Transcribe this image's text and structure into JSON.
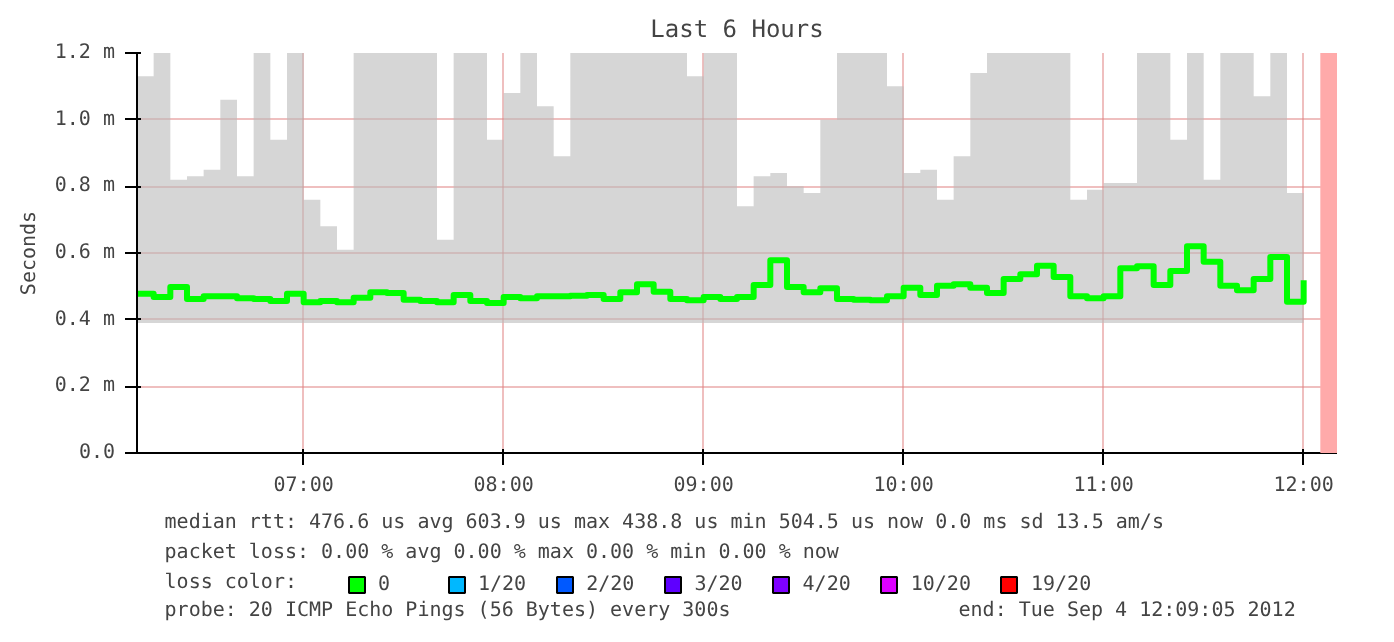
{
  "chart_data": {
    "type": "step",
    "title": "Last 6 Hours",
    "ylabel": "Seconds",
    "legend_title": "loss color:",
    "x": [
      6.1667,
      6.25,
      6.3333,
      6.4167,
      6.5,
      6.5833,
      6.6667,
      6.75,
      6.8333,
      6.9167,
      7.0,
      7.0833,
      7.1667,
      7.25,
      7.3333,
      7.4167,
      7.5,
      7.5833,
      7.6667,
      7.75,
      7.8333,
      7.9167,
      8.0,
      8.0833,
      8.1667,
      8.25,
      8.3333,
      8.4167,
      8.5,
      8.5833,
      8.6667,
      8.75,
      8.8333,
      8.9167,
      9.0,
      9.0833,
      9.1667,
      9.25,
      9.3333,
      9.4167,
      9.5,
      9.5833,
      9.6667,
      9.75,
      9.8333,
      9.9167,
      10.0,
      10.0833,
      10.1667,
      10.25,
      10.3333,
      10.4167,
      10.5,
      10.5833,
      10.6667,
      10.75,
      10.8333,
      10.9167,
      11.0,
      11.0833,
      11.1667,
      11.25,
      11.3333,
      11.4167,
      11.5,
      11.5833,
      11.6667,
      11.75,
      11.8333,
      11.9167,
      12.0
    ],
    "series": [
      {
        "name": "0",
        "color": "#00ff00",
        "values": [
          0.478,
          0.468,
          0.498,
          0.462,
          0.47,
          0.47,
          0.464,
          0.462,
          0.456,
          0.478,
          0.452,
          0.456,
          0.452,
          0.466,
          0.482,
          0.48,
          0.46,
          0.456,
          0.452,
          0.474,
          0.456,
          0.45,
          0.468,
          0.464,
          0.47,
          0.47,
          0.472,
          0.474,
          0.462,
          0.482,
          0.506,
          0.484,
          0.462,
          0.458,
          0.468,
          0.462,
          0.468,
          0.504,
          0.578,
          0.498,
          0.482,
          0.494,
          0.462,
          0.46,
          0.458,
          0.47,
          0.496,
          0.474,
          0.502,
          0.506,
          0.496,
          0.48,
          0.522,
          0.536,
          0.562,
          0.528,
          0.47,
          0.464,
          0.47,
          0.554,
          0.56,
          0.504,
          0.546,
          0.62,
          0.574,
          0.502,
          0.488,
          0.522,
          0.588,
          0.454,
          0.518
        ],
        "lower": [
          0.39,
          0.39,
          0.39,
          0.39,
          0.39,
          0.39,
          0.39,
          0.39,
          0.39,
          0.39,
          0.39,
          0.39,
          0.39,
          0.39,
          0.39,
          0.39,
          0.39,
          0.39,
          0.39,
          0.39,
          0.39,
          0.39,
          0.39,
          0.39,
          0.39,
          0.39,
          0.39,
          0.39,
          0.39,
          0.39,
          0.39,
          0.39,
          0.39,
          0.39,
          0.39,
          0.39,
          0.39,
          0.39,
          0.39,
          0.39,
          0.39,
          0.39,
          0.39,
          0.39,
          0.39,
          0.39,
          0.39,
          0.39,
          0.39,
          0.39,
          0.39,
          0.39,
          0.39,
          0.39,
          0.39,
          0.39,
          0.39,
          0.39,
          0.39,
          0.39,
          0.39,
          0.39,
          0.39,
          0.39,
          0.39,
          0.39,
          0.39,
          0.39,
          0.39,
          0.39,
          0.39
        ],
        "upper": [
          1.13,
          1.2,
          0.82,
          0.83,
          0.85,
          1.06,
          0.83,
          1.2,
          0.94,
          1.2,
          0.76,
          0.68,
          0.61,
          1.2,
          1.2,
          1.2,
          1.2,
          1.2,
          0.64,
          1.2,
          1.2,
          0.94,
          1.08,
          1.2,
          1.04,
          0.89,
          1.2,
          1.2,
          1.2,
          1.2,
          1.2,
          1.2,
          1.2,
          1.13,
          1.2,
          1.2,
          0.74,
          0.83,
          0.84,
          0.8,
          0.78,
          1.0,
          1.2,
          1.2,
          1.2,
          1.1,
          0.84,
          0.85,
          0.76,
          0.89,
          1.14,
          1.2,
          1.2,
          1.2,
          1.2,
          1.2,
          0.76,
          0.79,
          0.81,
          0.81,
          1.2,
          1.2,
          0.94,
          1.2,
          0.82,
          1.2,
          1.2,
          1.07,
          1.2,
          0.78,
          0.84
        ]
      },
      {
        "name": "1/20",
        "color": "#00b8ff",
        "values": [
          null,
          null,
          null,
          null,
          null,
          null,
          null,
          null,
          null,
          null,
          null,
          null,
          null,
          null,
          null,
          null,
          null,
          null,
          null,
          null,
          null,
          null,
          null,
          null,
          null,
          null,
          null,
          null,
          null,
          null,
          null,
          null,
          null,
          null,
          null,
          null,
          null,
          null,
          null,
          null,
          null,
          null,
          null,
          null,
          null,
          null,
          null,
          null,
          null,
          null,
          null,
          null,
          null,
          null,
          null,
          null,
          null,
          null,
          null,
          null,
          null,
          null,
          null,
          null,
          null,
          null,
          null,
          null,
          null,
          null,
          null
        ]
      },
      {
        "name": "2/20",
        "color": "#0059ff",
        "values": [
          null,
          null,
          null,
          null,
          null,
          null,
          null,
          null,
          null,
          null,
          null,
          null,
          null,
          null,
          null,
          null,
          null,
          null,
          null,
          null,
          null,
          null,
          null,
          null,
          null,
          null,
          null,
          null,
          null,
          null,
          null,
          null,
          null,
          null,
          null,
          null,
          null,
          null,
          null,
          null,
          null,
          null,
          null,
          null,
          null,
          null,
          null,
          null,
          null,
          null,
          null,
          null,
          null,
          null,
          null,
          null,
          null,
          null,
          null,
          null,
          null,
          null,
          null,
          null,
          null,
          null,
          null,
          null,
          null,
          null,
          null
        ]
      },
      {
        "name": "3/20",
        "color": "#5e00ff",
        "values": [
          null,
          null,
          null,
          null,
          null,
          null,
          null,
          null,
          null,
          null,
          null,
          null,
          null,
          null,
          null,
          null,
          null,
          null,
          null,
          null,
          null,
          null,
          null,
          null,
          null,
          null,
          null,
          null,
          null,
          null,
          null,
          null,
          null,
          null,
          null,
          null,
          null,
          null,
          null,
          null,
          null,
          null,
          null,
          null,
          null,
          null,
          null,
          null,
          null,
          null,
          null,
          null,
          null,
          null,
          null,
          null,
          null,
          null,
          null,
          null,
          null,
          null,
          null,
          null,
          null,
          null,
          null,
          null,
          null,
          null,
          null
        ]
      },
      {
        "name": "4/20",
        "color": "#7e00ff",
        "values": [
          null,
          null,
          null,
          null,
          null,
          null,
          null,
          null,
          null,
          null,
          null,
          null,
          null,
          null,
          null,
          null,
          null,
          null,
          null,
          null,
          null,
          null,
          null,
          null,
          null,
          null,
          null,
          null,
          null,
          null,
          null,
          null,
          null,
          null,
          null,
          null,
          null,
          null,
          null,
          null,
          null,
          null,
          null,
          null,
          null,
          null,
          null,
          null,
          null,
          null,
          null,
          null,
          null,
          null,
          null,
          null,
          null,
          null,
          null,
          null,
          null,
          null,
          null,
          null,
          null,
          null,
          null,
          null,
          null,
          null,
          null
        ]
      },
      {
        "name": "10/20",
        "color": "#dd00ff",
        "values": [
          null,
          null,
          null,
          null,
          null,
          null,
          null,
          null,
          null,
          null,
          null,
          null,
          null,
          null,
          null,
          null,
          null,
          null,
          null,
          null,
          null,
          null,
          null,
          null,
          null,
          null,
          null,
          null,
          null,
          null,
          null,
          null,
          null,
          null,
          null,
          null,
          null,
          null,
          null,
          null,
          null,
          null,
          null,
          null,
          null,
          null,
          null,
          null,
          null,
          null,
          null,
          null,
          null,
          null,
          null,
          null,
          null,
          null,
          null,
          null,
          null,
          null,
          null,
          null,
          null,
          null,
          null,
          null,
          null,
          null,
          null
        ]
      },
      {
        "name": "19/20",
        "color": "#ff0000",
        "values": [
          null,
          null,
          null,
          null,
          null,
          null,
          null,
          null,
          null,
          null,
          null,
          null,
          null,
          null,
          null,
          null,
          null,
          null,
          null,
          null,
          null,
          null,
          null,
          null,
          null,
          null,
          null,
          null,
          null,
          null,
          null,
          null,
          null,
          null,
          null,
          null,
          null,
          null,
          null,
          null,
          null,
          null,
          null,
          null,
          null,
          null,
          null,
          null,
          null,
          null,
          null,
          null,
          null,
          null,
          null,
          null,
          null,
          null,
          null,
          null,
          null,
          null,
          null,
          null,
          null,
          null,
          null,
          null,
          null,
          null,
          null
        ]
      }
    ],
    "bands": [
      {
        "axis": "x",
        "from": 12.0833,
        "to": 12.1667,
        "color": "#ffaaaa"
      }
    ],
    "xlim": [
      6.1667,
      12.1667
    ],
    "xticks": [
      {
        "value": 7,
        "label": "07:00"
      },
      {
        "value": 8,
        "label": "08:00"
      },
      {
        "value": 9,
        "label": "09:00"
      },
      {
        "value": 10,
        "label": "10:00"
      },
      {
        "value": 11,
        "label": "11:00"
      },
      {
        "value": 12,
        "label": "12:00"
      }
    ],
    "ylim": [
      0,
      1.2
    ],
    "yticks": [
      {
        "value": 0,
        "label": "0.0"
      },
      {
        "value": 0.2,
        "label": "0.2 m"
      },
      {
        "value": 0.4,
        "label": "0.4 m"
      },
      {
        "value": 0.6,
        "label": "0.6 m"
      },
      {
        "value": 0.8,
        "label": "0.8 m"
      },
      {
        "value": 1.0,
        "label": "1.0 m"
      },
      {
        "value": 1.2,
        "label": "1.2 m"
      }
    ],
    "grid": true,
    "legend": "bottom",
    "annotations": [
      "median rtt:  476.6 us avg  603.9 us max  438.8 us min  504.5 us now  0.0 ms sd  13.5   am/s",
      "packet loss: 0.00 % avg  0.00 % max  0.00 % min  0.00 % now",
      "probe:       20 ICMP Echo Pings (56 Bytes) every 300s",
      "end: Tue Sep  4 12:09:05 2012"
    ]
  }
}
